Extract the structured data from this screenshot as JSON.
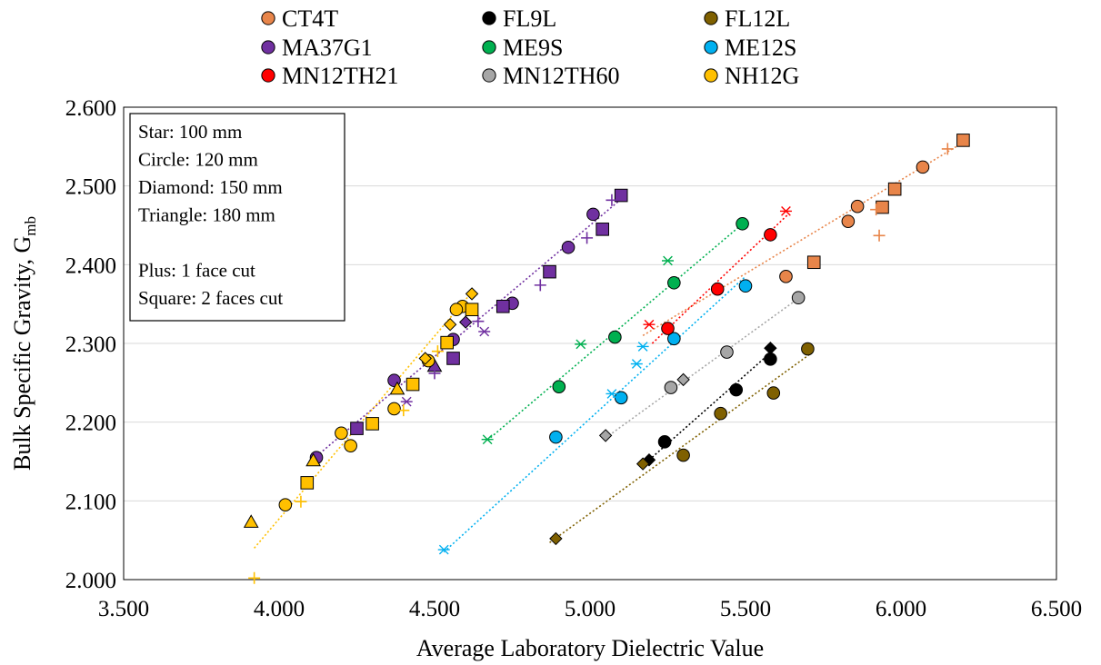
{
  "chart_data": {
    "type": "scatter",
    "xlabel": "Average Laboratory Dielectric Value",
    "ylabel": "Bulk Specific Gravity, G",
    "ylabel_sub": "mb",
    "xlim": [
      3.5,
      6.5
    ],
    "ylim": [
      2.0,
      2.6
    ],
    "x_ticks": [
      "3.500",
      "4.000",
      "4.500",
      "5.000",
      "5.500",
      "6.000",
      "6.500"
    ],
    "y_ticks": [
      "2.000",
      "2.100",
      "2.200",
      "2.300",
      "2.400",
      "2.500",
      "2.600"
    ],
    "grid": "horizontal",
    "legend_position": "top",
    "notes": [
      "Star: 100 mm",
      "Circle: 120 mm",
      "Diamond: 150 mm",
      "Triangle: 180 mm",
      "",
      "Plus: 1 face cut",
      "Square: 2 faces cut"
    ],
    "series": [
      {
        "name": "CT4T",
        "color": "#E8854A",
        "trend": [
          [
            5.17,
            2.31
          ],
          [
            6.22,
            2.56
          ]
        ],
        "points": [
          {
            "m": "circle",
            "x": 6.07,
            "y": 2.524
          },
          {
            "m": "circle",
            "x": 5.86,
            "y": 2.474
          },
          {
            "m": "circle",
            "x": 5.83,
            "y": 2.455
          },
          {
            "m": "circle",
            "x": 5.63,
            "y": 2.385
          },
          {
            "m": "square",
            "x": 6.2,
            "y": 2.558
          },
          {
            "m": "square",
            "x": 5.98,
            "y": 2.496
          },
          {
            "m": "square",
            "x": 5.94,
            "y": 2.473
          },
          {
            "m": "square",
            "x": 5.72,
            "y": 2.403
          },
          {
            "m": "plus",
            "x": 6.15,
            "y": 2.547
          },
          {
            "m": "plus",
            "x": 5.92,
            "y": 2.47
          },
          {
            "m": "plus",
            "x": 5.93,
            "y": 2.437
          }
        ]
      },
      {
        "name": "FL9L",
        "color": "#000000",
        "trend": [
          [
            5.17,
            2.145
          ],
          [
            5.6,
            2.295
          ]
        ],
        "points": [
          {
            "m": "circle",
            "x": 5.58,
            "y": 2.28
          },
          {
            "m": "circle",
            "x": 5.47,
            "y": 2.241
          },
          {
            "m": "circle",
            "x": 5.24,
            "y": 2.175
          },
          {
            "m": "diamond",
            "x": 5.58,
            "y": 2.294
          },
          {
            "m": "diamond",
            "x": 5.19,
            "y": 2.152
          }
        ]
      },
      {
        "name": "FL12L",
        "color": "#7F6000",
        "trend": [
          [
            4.87,
            2.047
          ],
          [
            5.72,
            2.29
          ]
        ],
        "points": [
          {
            "m": "circle",
            "x": 5.7,
            "y": 2.293
          },
          {
            "m": "circle",
            "x": 5.59,
            "y": 2.237
          },
          {
            "m": "circle",
            "x": 5.42,
            "y": 2.211
          },
          {
            "m": "circle",
            "x": 5.3,
            "y": 2.158
          },
          {
            "m": "diamond",
            "x": 4.89,
            "y": 2.052
          },
          {
            "m": "diamond",
            "x": 5.17,
            "y": 2.147
          }
        ]
      },
      {
        "name": "MA37G1",
        "color": "#7030A0",
        "trend": [
          [
            4.1,
            2.15
          ],
          [
            5.12,
            2.49
          ]
        ],
        "points": [
          {
            "m": "circle",
            "x": 5.01,
            "y": 2.464
          },
          {
            "m": "circle",
            "x": 4.93,
            "y": 2.422
          },
          {
            "m": "circle",
            "x": 4.75,
            "y": 2.351
          },
          {
            "m": "circle",
            "x": 4.56,
            "y": 2.305
          },
          {
            "m": "circle",
            "x": 4.37,
            "y": 2.253
          },
          {
            "m": "circle",
            "x": 4.12,
            "y": 2.155
          },
          {
            "m": "square",
            "x": 5.1,
            "y": 2.488
          },
          {
            "m": "square",
            "x": 5.04,
            "y": 2.445
          },
          {
            "m": "square",
            "x": 4.87,
            "y": 2.391
          },
          {
            "m": "square",
            "x": 4.72,
            "y": 2.347
          },
          {
            "m": "square",
            "x": 4.56,
            "y": 2.281
          },
          {
            "m": "square",
            "x": 4.25,
            "y": 2.192
          },
          {
            "m": "triangle",
            "x": 4.5,
            "y": 2.271
          },
          {
            "m": "diamond",
            "x": 4.6,
            "y": 2.327
          },
          {
            "m": "star",
            "x": 4.66,
            "y": 2.315
          },
          {
            "m": "star",
            "x": 4.41,
            "y": 2.226
          },
          {
            "m": "plus",
            "x": 5.07,
            "y": 2.482
          },
          {
            "m": "plus",
            "x": 4.99,
            "y": 2.434
          },
          {
            "m": "plus",
            "x": 4.84,
            "y": 2.374
          },
          {
            "m": "plus",
            "x": 4.64,
            "y": 2.328
          },
          {
            "m": "plus",
            "x": 4.5,
            "y": 2.262
          }
        ]
      },
      {
        "name": "ME9S",
        "color": "#00B050",
        "trend": [
          [
            4.67,
            2.177
          ],
          [
            5.5,
            2.455
          ]
        ],
        "points": [
          {
            "m": "circle",
            "x": 5.49,
            "y": 2.452
          },
          {
            "m": "circle",
            "x": 5.27,
            "y": 2.377
          },
          {
            "m": "circle",
            "x": 5.08,
            "y": 2.308
          },
          {
            "m": "circle",
            "x": 4.9,
            "y": 2.245
          },
          {
            "m": "star",
            "x": 5.25,
            "y": 2.405
          },
          {
            "m": "star",
            "x": 4.97,
            "y": 2.299
          },
          {
            "m": "star",
            "x": 4.67,
            "y": 2.178
          }
        ]
      },
      {
        "name": "ME12S",
        "color": "#00B0F0",
        "trend": [
          [
            4.53,
            2.035
          ],
          [
            5.5,
            2.385
          ]
        ],
        "points": [
          {
            "m": "circle",
            "x": 5.5,
            "y": 2.373
          },
          {
            "m": "circle",
            "x": 5.27,
            "y": 2.306
          },
          {
            "m": "circle",
            "x": 5.1,
            "y": 2.231
          },
          {
            "m": "circle",
            "x": 4.89,
            "y": 2.181
          },
          {
            "m": "star",
            "x": 5.17,
            "y": 2.296
          },
          {
            "m": "star",
            "x": 5.15,
            "y": 2.274
          },
          {
            "m": "star",
            "x": 5.07,
            "y": 2.236
          },
          {
            "m": "star",
            "x": 4.53,
            "y": 2.038
          }
        ]
      },
      {
        "name": "MN12TH21",
        "color": "#FF0000",
        "trend": [
          [
            5.2,
            2.3
          ],
          [
            5.64,
            2.465
          ]
        ],
        "points": [
          {
            "m": "circle",
            "x": 5.58,
            "y": 2.438
          },
          {
            "m": "circle",
            "x": 5.41,
            "y": 2.369
          },
          {
            "m": "circle",
            "x": 5.25,
            "y": 2.319
          },
          {
            "m": "star",
            "x": 5.63,
            "y": 2.468
          },
          {
            "m": "star",
            "x": 5.19,
            "y": 2.324
          }
        ]
      },
      {
        "name": "MN12TH60",
        "color": "#A6A6A6",
        "trend": [
          [
            5.05,
            2.18
          ],
          [
            5.68,
            2.36
          ]
        ],
        "points": [
          {
            "m": "circle",
            "x": 5.67,
            "y": 2.358
          },
          {
            "m": "circle",
            "x": 5.44,
            "y": 2.289
          },
          {
            "m": "circle",
            "x": 5.26,
            "y": 2.244
          },
          {
            "m": "diamond",
            "x": 5.3,
            "y": 2.254
          },
          {
            "m": "diamond",
            "x": 5.05,
            "y": 2.183
          }
        ]
      },
      {
        "name": "NH12G",
        "color": "#FFC000",
        "trend": [
          [
            3.92,
            2.04
          ],
          [
            4.62,
            2.365
          ]
        ],
        "points": [
          {
            "m": "circle",
            "x": 4.59,
            "y": 2.347
          },
          {
            "m": "circle",
            "x": 4.57,
            "y": 2.343
          },
          {
            "m": "circle",
            "x": 4.48,
            "y": 2.278
          },
          {
            "m": "circle",
            "x": 4.37,
            "y": 2.217
          },
          {
            "m": "circle",
            "x": 4.23,
            "y": 2.17
          },
          {
            "m": "circle",
            "x": 4.2,
            "y": 2.186
          },
          {
            "m": "circle",
            "x": 4.02,
            "y": 2.095
          },
          {
            "m": "square",
            "x": 4.62,
            "y": 2.343
          },
          {
            "m": "square",
            "x": 4.54,
            "y": 2.301
          },
          {
            "m": "square",
            "x": 4.43,
            "y": 2.248
          },
          {
            "m": "square",
            "x": 4.3,
            "y": 2.198
          },
          {
            "m": "square",
            "x": 4.09,
            "y": 2.123
          },
          {
            "m": "triangle",
            "x": 4.38,
            "y": 2.242
          },
          {
            "m": "triangle",
            "x": 4.11,
            "y": 2.151
          },
          {
            "m": "triangle",
            "x": 3.91,
            "y": 2.073
          },
          {
            "m": "diamond",
            "x": 4.62,
            "y": 2.363
          },
          {
            "m": "diamond",
            "x": 4.55,
            "y": 2.324
          },
          {
            "m": "diamond",
            "x": 4.47,
            "y": 2.281
          },
          {
            "m": "plus",
            "x": 4.51,
            "y": 2.29
          },
          {
            "m": "plus",
            "x": 4.4,
            "y": 2.215
          },
          {
            "m": "plus",
            "x": 4.07,
            "y": 2.099
          },
          {
            "m": "plus",
            "x": 3.92,
            "y": 2.002
          }
        ]
      }
    ]
  }
}
